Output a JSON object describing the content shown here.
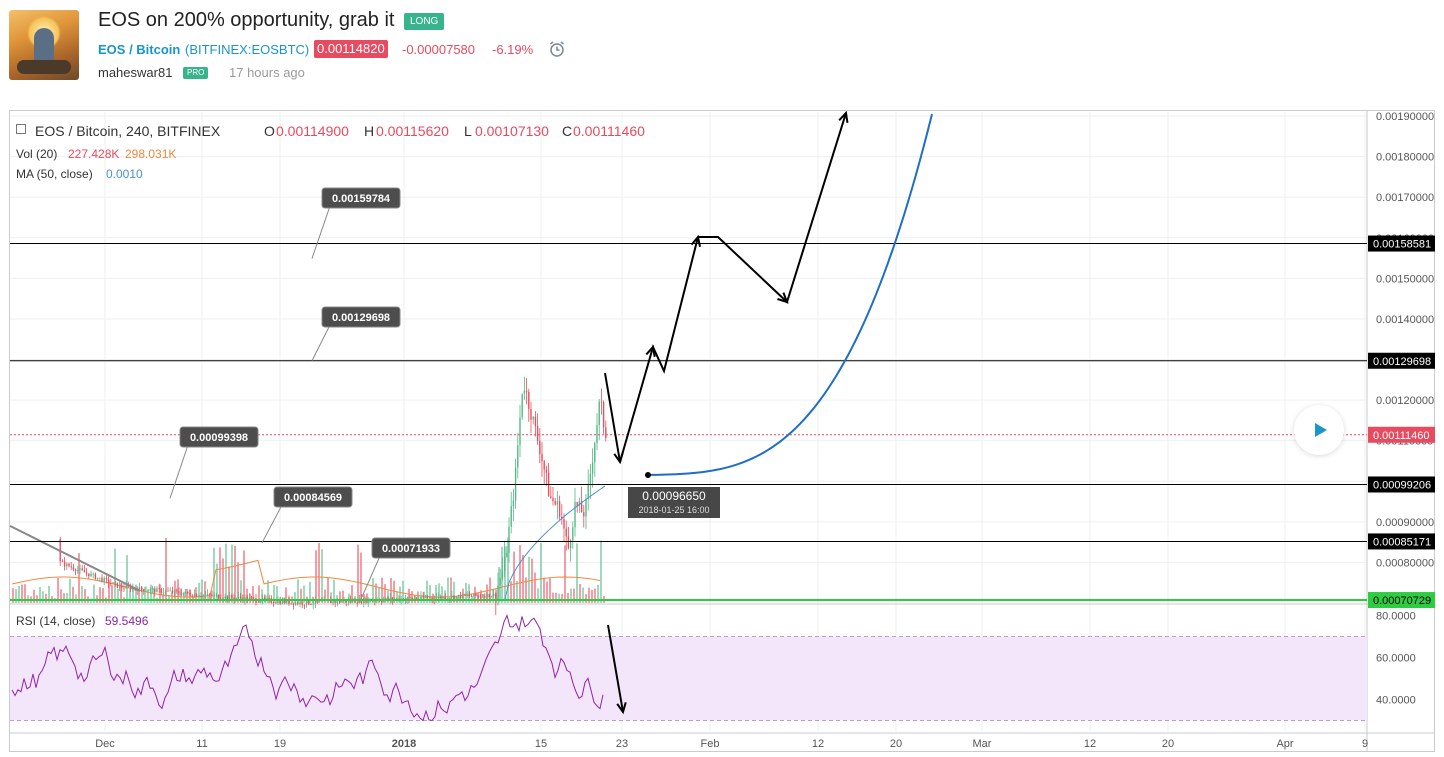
{
  "header": {
    "title": "EOS on 200% opportunity, grab it",
    "badge": "LONG",
    "symbol_name": "EOS / Bitcoin",
    "symbol_exchange": "(BITFINEX:EOSBTC)",
    "price": "0.00114820",
    "change": "-0.00007580",
    "change_pct": "-6.19%",
    "author": "maheswar81",
    "author_badge": "PRO",
    "time_ago": "17 hours ago",
    "alarm_icon": "alarm-clock-icon"
  },
  "legend": {
    "main_title": "EOS / Bitcoin, 240, BITFINEX",
    "o_label": "O",
    "o_value": "0.00114900",
    "h_label": "H",
    "h_value": "0.00115620",
    "l_label": "L",
    "l_value": "0.00107130",
    "c_label": "C",
    "c_value": "0.00111460",
    "vol_label": "Vol (20)",
    "vol_value1": "227.428K",
    "vol_value2": "298.031K",
    "ma_label": "MA (50, close)",
    "ma_value": "0.0010",
    "rsi_label": "RSI (14, close)",
    "rsi_value": "59.5496"
  },
  "colors": {
    "up": "#53b987",
    "down": "#eb4d5c",
    "ma": "#4a90d9",
    "rsi": "#8e24aa",
    "rsi_band": "#f3e5fa",
    "green_line": "#2ecc40",
    "curve": "#1e6ec8",
    "current": "#e84a5f"
  },
  "chart_data": {
    "type": "candlestick",
    "symbol": "EOS / Bitcoin, 240, BITFINEX",
    "ylim": [
      0.0007,
      0.00191
    ],
    "y_ticks": [
      "0.00080000",
      "0.00090000",
      "0.00100000",
      "0.00110000",
      "0.00120000",
      "0.00130000",
      "0.00140000",
      "0.00150000",
      "0.00160000",
      "0.00170000",
      "0.00180000",
      "0.00190000"
    ],
    "x_ticks": [
      "Dec",
      "11",
      "19",
      "2018",
      "15",
      "23",
      "Feb",
      "12",
      "20",
      "Mar",
      "12",
      "20",
      "Apr",
      "9"
    ],
    "horizontal_lines": [
      {
        "price": "0.00158581",
        "color": "#000000"
      },
      {
        "price": "0.00129698",
        "color": "#000000"
      },
      {
        "price": "0.00099206",
        "color": "#000000"
      },
      {
        "price": "0.00085171",
        "color": "#000000"
      },
      {
        "price": "0.00070729",
        "color": "#2ecc40"
      },
      {
        "price": "0.00111460",
        "color": "#e84a5f",
        "style": "dotted",
        "current": true
      }
    ],
    "callouts": [
      "0.00159784",
      "0.00129698",
      "0.00099398",
      "0.00084569",
      "0.00071933"
    ],
    "crosshair": {
      "value": "0.00096650",
      "time": "2018-01-25 16:00"
    },
    "rsi": {
      "ylim": [
        25,
        85
      ],
      "ticks": [
        "80.0000",
        "60.0000",
        "40.0000"
      ],
      "upper_band": 70,
      "lower_band": 30
    }
  }
}
